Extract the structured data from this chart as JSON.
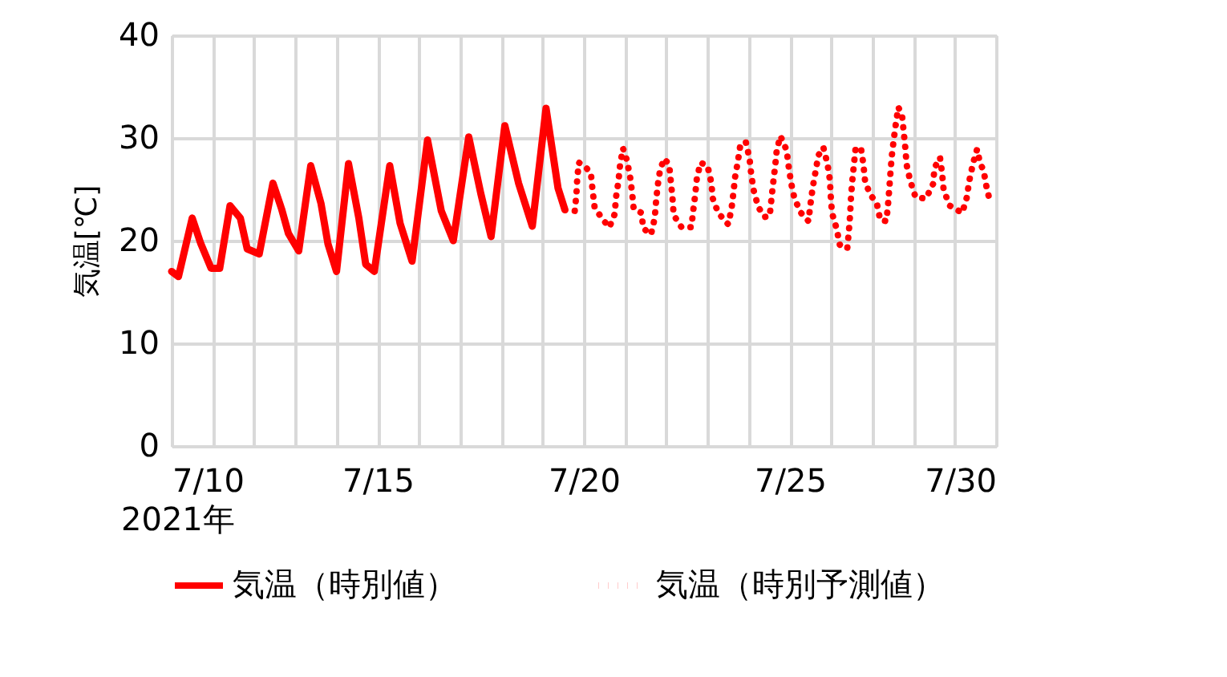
{
  "chart_data": {
    "type": "line",
    "xlabel": "2021年",
    "ylabel": "気温[℃]",
    "xlim": [
      "2021-07-10T00:00",
      "2021-07-30T00:00"
    ],
    "ylim": [
      0,
      40
    ],
    "xticks": [
      {
        "value": "2021-07-10T00:00",
        "label": "7/10"
      },
      {
        "value": "2021-07-11T00:00",
        "label": null
      },
      {
        "value": "2021-07-12T00:00",
        "label": null
      },
      {
        "value": "2021-07-13T00:00",
        "label": null
      },
      {
        "value": "2021-07-14T00:00",
        "label": null
      },
      {
        "value": "2021-07-15T00:00",
        "label": "7/15"
      },
      {
        "value": "2021-07-16T00:00",
        "label": null
      },
      {
        "value": "2021-07-17T00:00",
        "label": null
      },
      {
        "value": "2021-07-18T00:00",
        "label": null
      },
      {
        "value": "2021-07-19T00:00",
        "label": null
      },
      {
        "value": "2021-07-20T00:00",
        "label": "7/20"
      },
      {
        "value": "2021-07-21T00:00",
        "label": null
      },
      {
        "value": "2021-07-22T00:00",
        "label": null
      },
      {
        "value": "2021-07-23T00:00",
        "label": null
      },
      {
        "value": "2021-07-24T00:00",
        "label": null
      },
      {
        "value": "2021-07-25T00:00",
        "label": "7/25"
      },
      {
        "value": "2021-07-26T00:00",
        "label": null
      },
      {
        "value": "2021-07-27T00:00",
        "label": null
      },
      {
        "value": "2021-07-28T00:00",
        "label": null
      },
      {
        "value": "2021-07-29T00:00",
        "label": null
      },
      {
        "value": "2021-07-30T00:00",
        "label": "7/30"
      }
    ],
    "yticks": [
      0,
      10,
      20,
      30,
      40
    ],
    "grid": true,
    "legend": "bottom",
    "marker": "none",
    "series": [
      {
        "name": "気温（時別値）",
        "color": "#ff0000",
        "line_style": "solid",
        "x": [
          "2021-07-10T00:00",
          "2021-07-10T04:00",
          "2021-07-10T12:00",
          "2021-07-10T17:00",
          "2021-07-10T23:00",
          "2021-07-11T04:00",
          "2021-07-11T10:00",
          "2021-07-11T16:00",
          "2021-07-11T20:00",
          "2021-07-12T03:00",
          "2021-07-12T11:00",
          "2021-07-12T16:00",
          "2021-07-12T20:00",
          "2021-07-13T02:00",
          "2021-07-13T09:00",
          "2021-07-13T15:00",
          "2021-07-13T19:00",
          "2021-07-14T00:00",
          "2021-07-14T07:00",
          "2021-07-14T13:00",
          "2021-07-14T17:00",
          "2021-07-14T22:00",
          "2021-07-15T07:00",
          "2021-07-15T13:00",
          "2021-07-15T20:00",
          "2021-07-16T05:00",
          "2021-07-16T13:00",
          "2021-07-16T20:00",
          "2021-07-17T05:00",
          "2021-07-17T12:00",
          "2021-07-17T18:00",
          "2021-07-18T02:00",
          "2021-07-18T10:00",
          "2021-07-18T18:00",
          "2021-07-19T02:00",
          "2021-07-19T09:00",
          "2021-07-19T13:00"
        ],
        "values": [
          17.0,
          16.5,
          22.2,
          19.7,
          17.3,
          17.3,
          23.4,
          22.2,
          19.2,
          18.7,
          25.6,
          23.1,
          20.7,
          19.0,
          27.3,
          23.6,
          19.7,
          17.0,
          27.5,
          22.2,
          17.7,
          17.0,
          27.3,
          21.7,
          18.0,
          29.8,
          22.9,
          20.0,
          30.1,
          24.6,
          20.4,
          31.2,
          25.6,
          21.4,
          32.9,
          25.1,
          23.0
        ]
      },
      {
        "name": "気温（時別予測値）",
        "color": "#ff0000",
        "line_style": "dotted",
        "x": [
          "2021-07-19T18:43",
          "2021-07-19T19:41",
          "2021-07-19T20:10",
          "2021-07-19T21:07",
          "2021-07-20T00:14",
          "2021-07-20T04:05",
          "2021-07-20T05:02",
          "2021-07-20T06:14",
          "2021-07-20T10:19",
          "2021-07-20T14:53",
          "2021-07-20T18:00",
          "2021-07-20T18:43",
          "2021-07-20T20:10",
          "2021-07-20T21:07",
          "2021-07-20T22:48",
          "2021-07-21T00:58",
          "2021-07-21T02:53",
          "2021-07-21T04:05",
          "2021-07-21T05:02",
          "2021-07-21T09:36",
          "2021-07-21T10:34",
          "2021-07-21T15:07",
          "2021-07-21T17:17",
          "2021-07-21T18:00",
          "2021-07-21T18:58",
          "2021-07-21T20:24",
          "2021-07-21T22:48",
          "2021-07-22T01:41",
          "2021-07-22T02:38",
          "2021-07-22T03:36",
          "2021-07-22T04:19",
          "2021-07-22T08:53",
          "2021-07-22T14:38",
          "2021-07-22T15:36",
          "2021-07-22T16:48",
          "2021-07-22T17:46",
          "2021-07-22T19:55",
          "2021-07-23T00:00",
          "2021-07-23T02:10",
          "2021-07-23T03:07",
          "2021-07-23T06:14",
          "2021-07-23T12:00",
          "2021-07-23T13:55",
          "2021-07-23T15:07",
          "2021-07-23T16:05",
          "2021-07-23T17:46",
          "2021-07-23T19:12",
          "2021-07-23T22:19",
          "2021-07-24T00:29",
          "2021-07-24T01:26",
          "2021-07-24T02:53",
          "2021-07-24T05:31",
          "2021-07-24T09:07",
          "2021-07-24T12:14",
          "2021-07-24T13:12",
          "2021-07-24T14:10",
          "2021-07-24T15:22",
          "2021-07-24T16:19",
          "2021-07-24T18:29",
          "2021-07-24T22:05",
          "2021-07-24T23:17",
          "2021-07-25T00:43",
          "2021-07-25T02:38",
          "2021-07-25T06:29",
          "2021-07-25T10:48",
          "2021-07-25T12:00",
          "2021-07-25T13:12",
          "2021-07-25T14:53",
          "2021-07-25T16:34",
          "2021-07-25T19:26",
          "2021-07-25T21:50",
          "2021-07-25T23:17",
          "2021-07-25T23:46",
          "2021-07-26T00:29",
          "2021-07-26T03:07",
          "2021-07-26T05:02",
          "2021-07-26T09:22",
          "2021-07-26T10:19",
          "2021-07-26T11:02",
          "2021-07-26T11:31",
          "2021-07-26T12:14",
          "2021-07-26T13:12",
          "2021-07-26T14:10",
          "2021-07-26T17:17",
          "2021-07-26T18:43",
          "2021-07-26T19:41",
          "2021-07-26T22:19",
          "2021-07-27T02:38",
          "2021-07-27T04:34",
          "2021-07-27T08:10",
          "2021-07-27T09:07",
          "2021-07-27T09:50",
          "2021-07-27T10:34",
          "2021-07-27T11:17",
          "2021-07-27T12:29",
          "2021-07-27T13:41",
          "2021-07-27T15:07",
          "2021-07-27T17:17",
          "2021-07-27T18:14",
          "2021-07-27T19:12",
          "2021-07-27T19:55",
          "2021-07-27T22:05",
          "2021-07-28T01:12",
          "2021-07-28T07:12",
          "2021-07-28T11:17",
          "2021-07-28T12:14",
          "2021-07-28T15:22",
          "2021-07-28T16:34",
          "2021-07-28T17:31",
          "2021-07-28T21:07",
          "2021-07-29T04:19",
          "2021-07-29T06:58",
          "2021-07-29T08:24",
          "2021-07-29T10:34",
          "2021-07-29T12:58",
          "2021-07-29T14:38",
          "2021-07-29T16:48",
          "2021-07-29T18:29",
          "2021-07-29T20:38"
        ],
        "values": [
          22.9,
          24.5,
          26.1,
          27.6,
          27.3,
          26.6,
          25.0,
          23.3,
          22.2,
          21.3,
          22.6,
          24.2,
          25.8,
          27.4,
          29.0,
          27.9,
          26.3,
          24.7,
          23.1,
          22.7,
          21.2,
          20.6,
          22.2,
          23.7,
          25.3,
          26.9,
          28.0,
          27.4,
          25.8,
          24.2,
          22.5,
          21.3,
          21.3,
          22.8,
          24.4,
          26.0,
          27.6,
          27.3,
          25.7,
          24.1,
          22.7,
          21.6,
          23.0,
          24.7,
          26.2,
          27.8,
          29.4,
          29.6,
          28.0,
          26.5,
          24.9,
          23.3,
          22.3,
          22.4,
          24.0,
          25.5,
          27.2,
          28.8,
          30.2,
          28.8,
          27.2,
          25.6,
          24.1,
          22.7,
          21.9,
          23.6,
          25.1,
          26.7,
          28.3,
          29.1,
          27.5,
          25.9,
          24.3,
          22.7,
          21.2,
          19.6,
          19.2,
          20.9,
          22.5,
          24.1,
          25.7,
          27.3,
          28.9,
          29.1,
          27.5,
          25.9,
          24.6,
          23.6,
          22.0,
          21.9,
          23.5,
          25.0,
          26.7,
          28.2,
          29.9,
          31.4,
          33.0,
          32.2,
          30.6,
          29.0,
          27.4,
          25.8,
          24.2,
          24.1,
          25.5,
          27.1,
          28.1,
          26.6,
          24.9,
          23.4,
          22.7,
          24.2,
          25.8,
          27.5,
          28.9,
          27.6,
          26.8,
          25.2,
          23.7
        ]
      }
    ]
  }
}
